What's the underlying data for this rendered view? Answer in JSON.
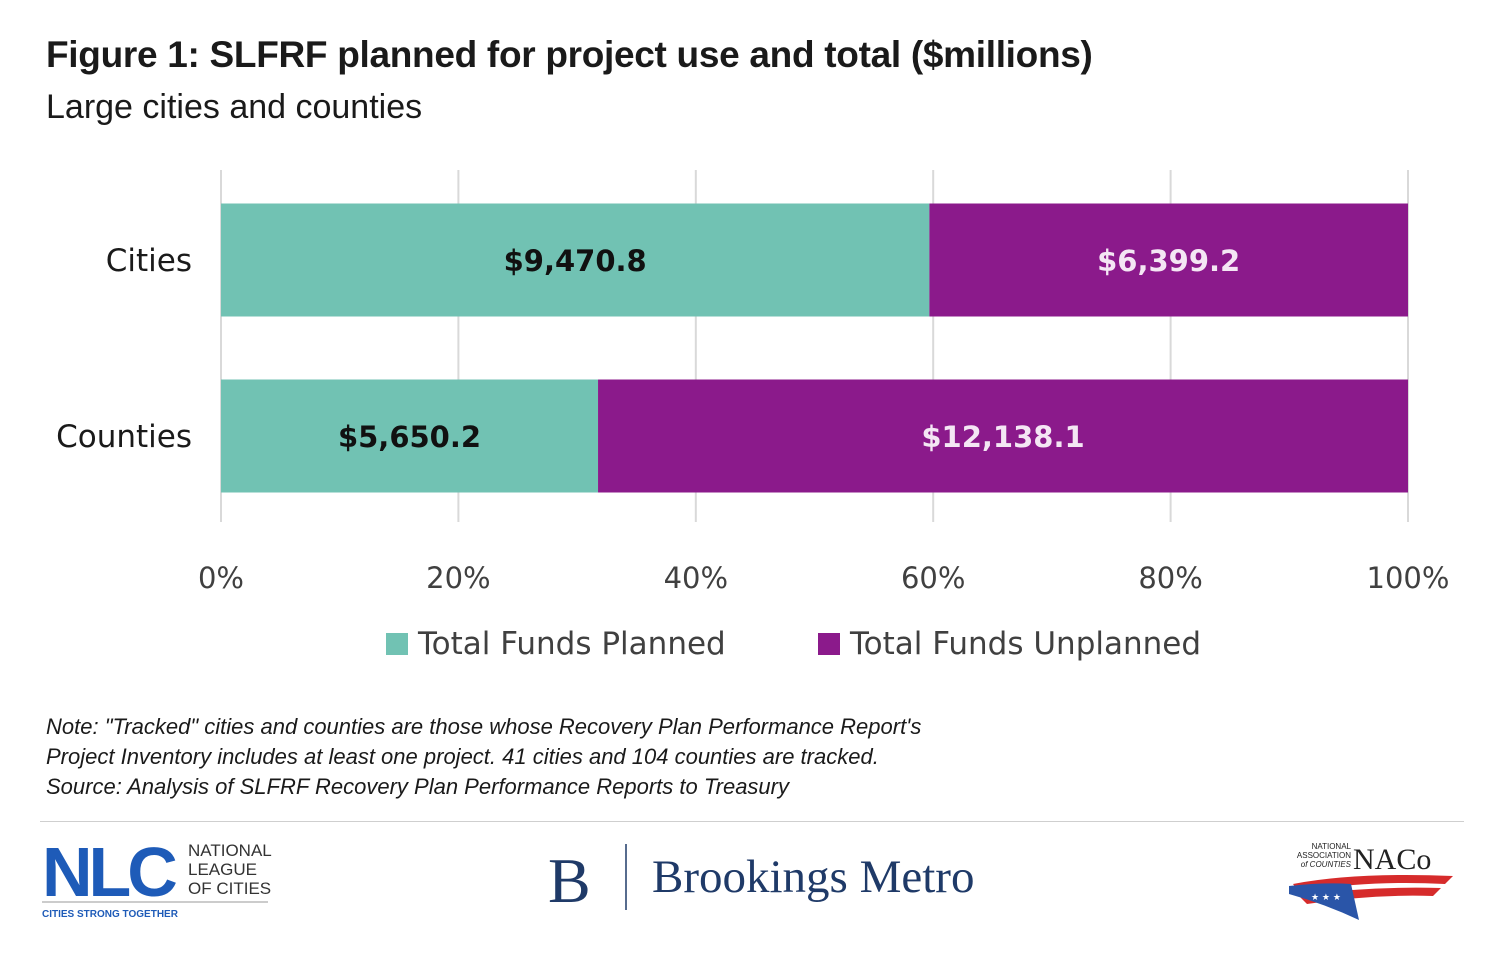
{
  "header": {
    "title": "Figure 1: SLFRF planned for project use and total ($millions)",
    "subtitle": "Large cities and counties"
  },
  "chart_data": {
    "type": "bar",
    "orientation": "horizontal",
    "stacked": "percent",
    "categories": [
      "Cities",
      "Counties"
    ],
    "series": [
      {
        "name": "Total Funds Planned",
        "values": [
          9470.8,
          5650.2
        ],
        "labels": [
          "$9,470.8",
          "$5,650.2"
        ],
        "color": "#71c2b3",
        "label_color": "#111111"
      },
      {
        "name": "Total Funds Unplanned",
        "values": [
          6399.2,
          12138.1
        ],
        "labels": [
          "$6,399.2",
          "$12,138.1"
        ],
        "color": "#8b1a8b",
        "label_color": "#f4e6f4"
      }
    ],
    "xlim": [
      0,
      100
    ],
    "x_ticks": [
      "0%",
      "20%",
      "40%",
      "60%",
      "80%",
      "100%"
    ],
    "grid": true,
    "legend_position": "bottom"
  },
  "notes": [
    "Note: \"Tracked\" cities and counties are those whose Recovery Plan Performance Report's",
    "Project Inventory includes at least one project. 41 cities and 104 counties are tracked.",
    "Source: Analysis of SLFRF Recovery Plan Performance Reports to Treasury"
  ],
  "logos": {
    "nlc": {
      "mark": "NLC",
      "line1": "NATIONAL",
      "line2": "LEAGUE",
      "line3": "OF CITIES",
      "tagline": "CITIES STRONG TOGETHER",
      "color": "#1e5bb8"
    },
    "brookings": {
      "mark": "B",
      "name": "Brookings Metro",
      "color": "#1f3a68"
    },
    "naco": {
      "line1": "NATIONAL",
      "line2": "ASSOCIATION",
      "line3": "of COUNTIES",
      "mark": "NACo",
      "red": "#d62b2b",
      "blue": "#2a55a8"
    }
  }
}
